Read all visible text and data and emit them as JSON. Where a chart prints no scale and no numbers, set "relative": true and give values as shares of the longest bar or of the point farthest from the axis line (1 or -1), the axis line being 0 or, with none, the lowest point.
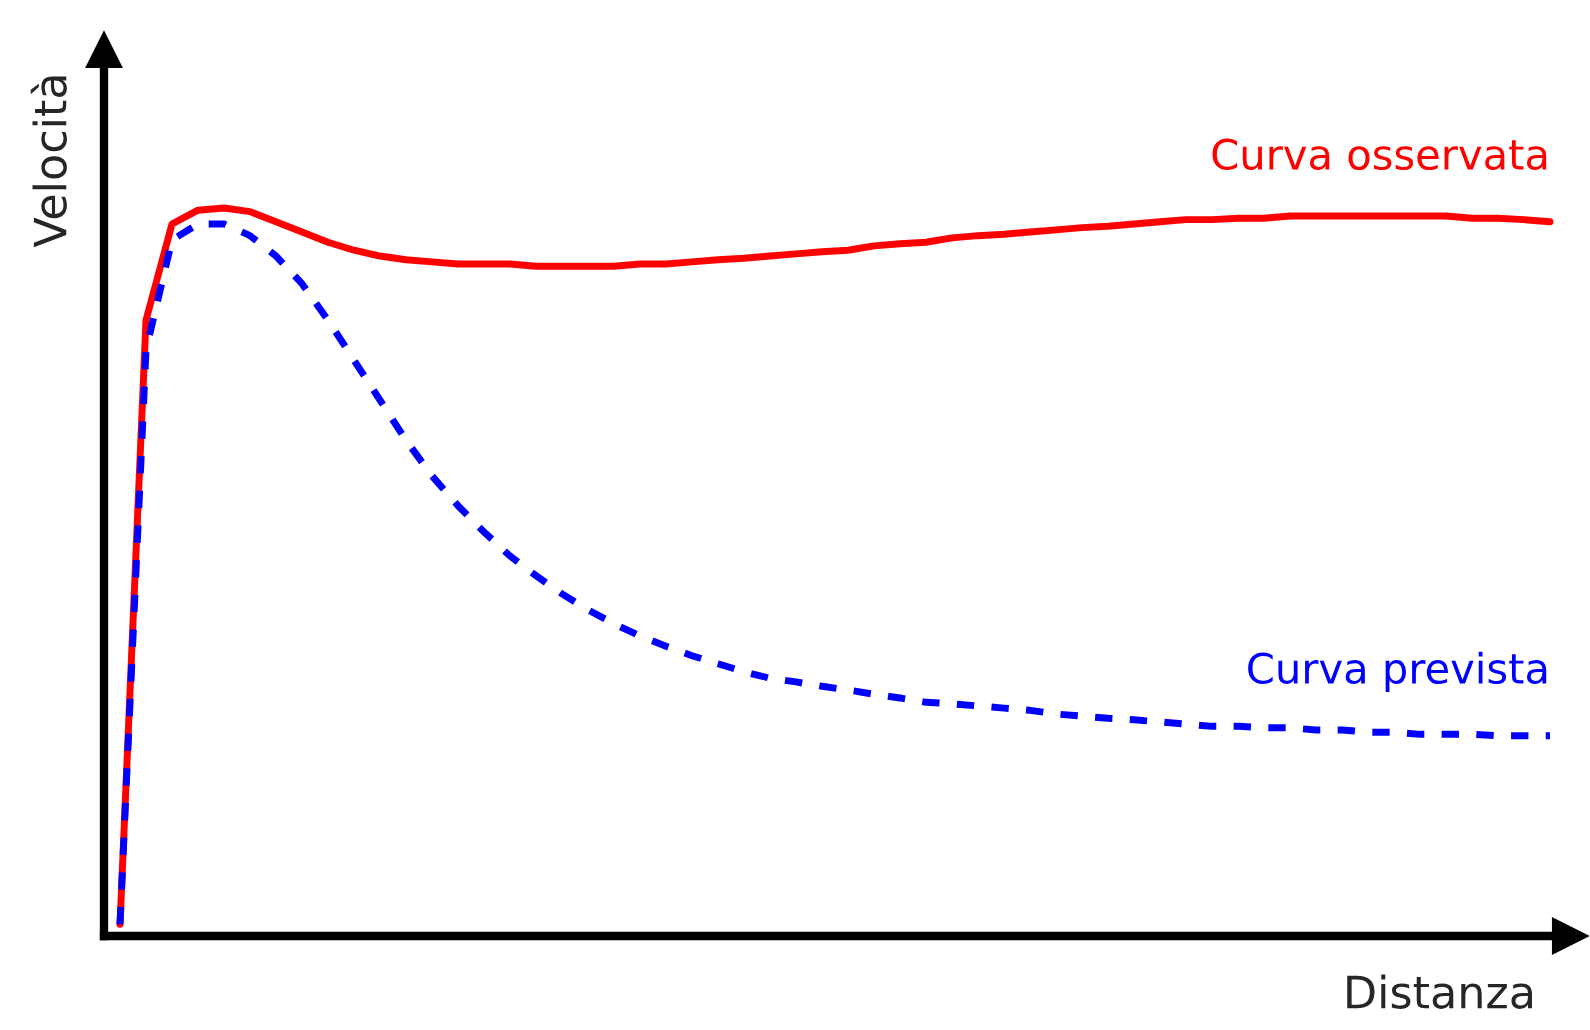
{
  "chart_data": {
    "type": "line",
    "relative": true,
    "xlabel": "Distanza",
    "ylabel": "Velocità",
    "legend": false,
    "categories": [
      null,
      null,
      null,
      null,
      null,
      null,
      null,
      null,
      null,
      null,
      null,
      null,
      null,
      null,
      null,
      null,
      null,
      null,
      null,
      null,
      null,
      null,
      null,
      null,
      null,
      null,
      null,
      null,
      null,
      null,
      null,
      null,
      null,
      null,
      null,
      null,
      null,
      null,
      null,
      null,
      null,
      null,
      null,
      null,
      null,
      null,
      null,
      null,
      null,
      null,
      null,
      null,
      null,
      null,
      null,
      null
    ],
    "series": [
      {
        "name": "Curva osservata",
        "color": "#ff0000",
        "line_style": "solid",
        "values": [
          0.016,
          0.846,
          0.978,
          0.997,
          1.0,
          0.995,
          0.981,
          0.967,
          0.953,
          0.942,
          0.934,
          0.929,
          0.926,
          0.923,
          0.923,
          0.923,
          0.92,
          0.92,
          0.92,
          0.92,
          0.923,
          0.923,
          0.926,
          0.929,
          0.931,
          0.934,
          0.937,
          0.94,
          0.942,
          0.948,
          0.951,
          0.953,
          0.959,
          0.962,
          0.964,
          0.967,
          0.97,
          0.973,
          0.975,
          0.978,
          0.981,
          0.984,
          0.984,
          0.986,
          0.986,
          0.989,
          0.989,
          0.989,
          0.989,
          0.989,
          0.989,
          0.989,
          0.986,
          0.986,
          0.984,
          0.981
        ]
      },
      {
        "name": "Curva prevista",
        "color": "#0000ff",
        "line_style": "dashed",
        "values": [
          0.016,
          0.805,
          0.956,
          0.978,
          0.978,
          0.962,
          0.934,
          0.896,
          0.846,
          0.791,
          0.736,
          0.681,
          0.632,
          0.591,
          0.555,
          0.522,
          0.495,
          0.47,
          0.448,
          0.429,
          0.412,
          0.398,
          0.385,
          0.374,
          0.363,
          0.354,
          0.349,
          0.343,
          0.338,
          0.332,
          0.327,
          0.321,
          0.319,
          0.316,
          0.313,
          0.31,
          0.305,
          0.302,
          0.299,
          0.297,
          0.294,
          0.291,
          0.288,
          0.288,
          0.286,
          0.286,
          0.283,
          0.283,
          0.28,
          0.28,
          0.277,
          0.277,
          0.277,
          0.275,
          0.275,
          0.275
        ]
      }
    ]
  }
}
